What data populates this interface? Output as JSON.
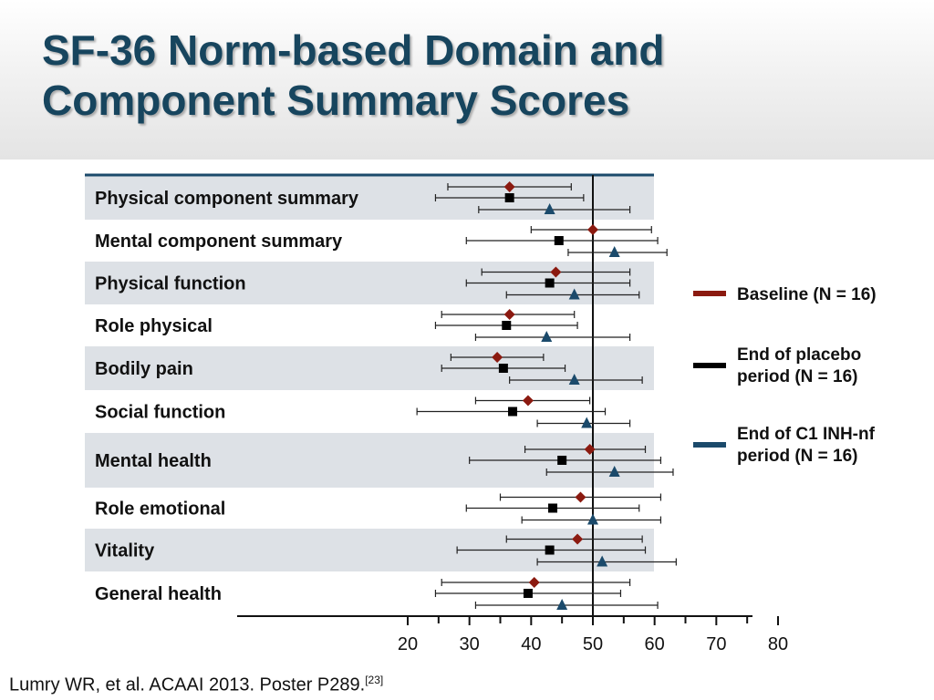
{
  "slide": {
    "title_line1": "SF-36 Norm-based Domain and",
    "title_line2": "Component Summary Scores",
    "citation": "Lumry WR, et al. ACAAI 2013. Poster P289.",
    "citation_ref": "[23]"
  },
  "chart_data": {
    "type": "forest",
    "xlim": [
      20,
      80
    ],
    "x_ticks": [
      20,
      30,
      40,
      50,
      60,
      70,
      80
    ],
    "reference_line": 50,
    "grid": false,
    "legend_position": "right",
    "categories": [
      "Physical component summary",
      "Mental component summary",
      "Physical function",
      "Role physical",
      "Bodily pain",
      "Social function",
      "Mental health",
      "Role emotional",
      "Vitality",
      "General health"
    ],
    "shaded_rows": [
      0,
      2,
      4,
      6,
      8
    ],
    "series": [
      {
        "name": "Baseline (N = 16)",
        "color": "#8b1a10",
        "marker": "diamond",
        "means": [
          36.5,
          50,
          44,
          36.5,
          34.5,
          39.5,
          49.5,
          48,
          47.5,
          40.5
        ],
        "lower": [
          26.5,
          40,
          32,
          25.5,
          27,
          31,
          39,
          35,
          36,
          25.5
        ],
        "upper": [
          46.5,
          59.5,
          56,
          47,
          42,
          49.5,
          58.5,
          61,
          58,
          56
        ]
      },
      {
        "name": "End of placebo period (N = 16)",
        "color": "#000000",
        "marker": "square",
        "means": [
          36.5,
          44.5,
          43,
          36,
          35.5,
          37,
          45,
          43.5,
          43,
          39.5
        ],
        "lower": [
          24.5,
          29.5,
          29.5,
          24.5,
          25.5,
          21.5,
          30,
          29.5,
          28,
          24.5
        ],
        "upper": [
          48.5,
          60.5,
          56,
          47.5,
          45.5,
          52,
          61,
          57.5,
          58.5,
          54.5
        ]
      },
      {
        "name": "End of C1 INH-nf period (N = 16)",
        "color": "#1b4a6b",
        "marker": "triangle",
        "means": [
          43,
          53.5,
          47,
          42.5,
          47,
          49,
          53.5,
          50,
          51.5,
          45
        ],
        "lower": [
          31.5,
          46,
          36,
          31,
          36.5,
          41,
          42.5,
          38.5,
          41,
          31
        ],
        "upper": [
          56,
          62,
          57.5,
          56,
          58,
          56,
          63,
          61,
          63.5,
          60.5
        ]
      }
    ]
  }
}
